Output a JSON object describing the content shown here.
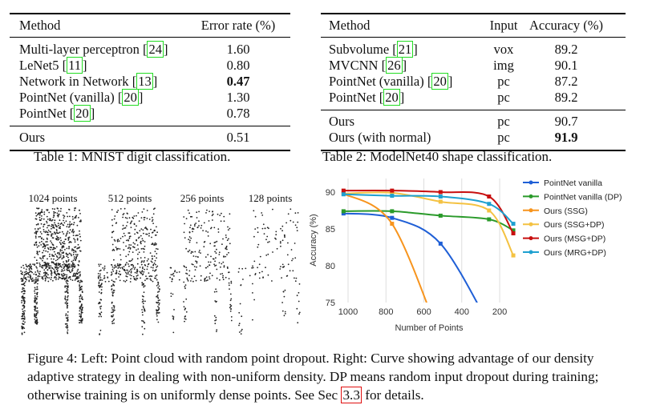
{
  "table1": {
    "caption": "Table 1: MNIST digit classification.",
    "headers": [
      "Method",
      "Error rate (%)"
    ],
    "rows": [
      {
        "method": "Multi-layer perceptron",
        "ref": "24",
        "value": "1.60"
      },
      {
        "method": "LeNet5",
        "ref": "11",
        "value": "0.80"
      },
      {
        "method": "Network in Network",
        "ref": "13",
        "value": "0.47",
        "bold": true
      },
      {
        "method": "PointNet (vanilla)",
        "ref": "20",
        "value": "1.30"
      },
      {
        "method": "PointNet",
        "ref": "20",
        "value": "0.78"
      }
    ],
    "ours": {
      "method": "Ours",
      "value": "0.51"
    }
  },
  "table2": {
    "caption": "Table 2: ModelNet40 shape classification.",
    "headers": [
      "Method",
      "Input",
      "Accuracy (%)"
    ],
    "rows": [
      {
        "method": "Subvolume",
        "ref": "21",
        "input": "vox",
        "value": "89.2"
      },
      {
        "method": "MVCNN",
        "ref": "26",
        "input": "img",
        "value": "90.1"
      },
      {
        "method": "PointNet (vanilla)",
        "ref": "20",
        "input": "pc",
        "value": "87.2"
      },
      {
        "method": "PointNet",
        "ref": "20",
        "input": "pc",
        "value": "89.2"
      }
    ],
    "ours": [
      {
        "method": "Ours",
        "input": "pc",
        "value": "90.7"
      },
      {
        "method": "Ours (with normal)",
        "input": "pc",
        "value": "91.9",
        "bold": true
      }
    ]
  },
  "point_clouds": {
    "labels": [
      "1024 points",
      "512 points",
      "256 points",
      "128 points"
    ]
  },
  "chart_data": {
    "type": "line",
    "xlabel": "Number of Points",
    "ylabel": "Accuracy (%)",
    "xlim": [
      1000,
      128
    ],
    "x_reversed": true,
    "ylim": [
      75,
      91.5
    ],
    "xticks": [
      "1000",
      "800",
      "600",
      "400",
      "200"
    ],
    "yticks": [
      "90",
      "85",
      "80",
      "75"
    ],
    "grid": "vertical",
    "legend": "right",
    "x": [
      1024,
      768,
      512,
      256,
      128
    ],
    "series": [
      {
        "name": "PointNet vanilla",
        "color": "#1f5fd6",
        "values": [
          87.1,
          86.5,
          83.0,
          72.0,
          null
        ]
      },
      {
        "name": "PointNet vanilla (DP)",
        "color": "#2a9a2a",
        "values": [
          87.4,
          87.4,
          86.8,
          86.3,
          84.8
        ]
      },
      {
        "name": "Ours (SSG)",
        "color": "#f7941d",
        "values": [
          89.8,
          85.7,
          70.0,
          null,
          null
        ]
      },
      {
        "name": "Ours (SSG+DP)",
        "color": "#f4c242",
        "values": [
          89.8,
          89.9,
          88.7,
          87.5,
          81.4
        ]
      },
      {
        "name": "Ours (MSG+DP)",
        "color": "#c80f0f",
        "values": [
          90.2,
          90.2,
          90.0,
          89.4,
          84.4
        ]
      },
      {
        "name": "Ours (MRG+DP)",
        "color": "#1ea0d0",
        "values": [
          89.7,
          89.5,
          89.4,
          88.4,
          85.7
        ]
      }
    ]
  },
  "figure_caption": {
    "p1": "Figure 4: Left: Point cloud with random point dropout. Right: Curve showing advantage of our density adaptive strategy in dealing with non-uniform density. DP means random input dropout during training; otherwise training is on uniformly dense points. See Sec ",
    "ref": "3.3",
    "p2": " for details."
  }
}
